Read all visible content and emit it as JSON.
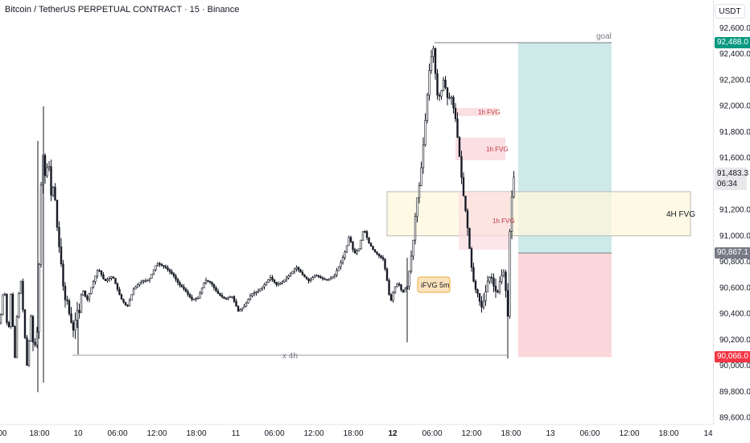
{
  "header": {
    "title": "Bitcoin / TetherUS PERPETUAL CONTRACT · 15 · Binance",
    "unit": "USDT"
  },
  "price_axis": {
    "ticks": [
      "92,600.0",
      "92,400.0",
      "92,200.0",
      "92,000.0",
      "91,800.0",
      "91,600.0",
      "91,200.0",
      "91,000.0",
      "90,800.0",
      "90,600.0",
      "90,400.0",
      "90,200.0",
      "90,000.0",
      "89,800.0",
      "89,600.0"
    ],
    "badges": {
      "target": "92,488.0",
      "current_price": "91,483.3",
      "countdown": "06:34",
      "entry": "90,867.1",
      "stop": "90,066.0"
    }
  },
  "time_axis": {
    "ticks": [
      "00",
      "18:00",
      "10",
      "06:00",
      "12:00",
      "18:00",
      "11",
      "06:00",
      "12:00",
      "18:00",
      "12",
      "06:00",
      "12:00",
      "18:00",
      "13",
      "06:00",
      "12:00",
      "18:00",
      "14"
    ]
  },
  "annotations": {
    "goal": "goal",
    "fvg_4h": "4H FVG",
    "fvg_1h_a": "1h FVG",
    "fvg_1h_b": "1h FVG",
    "fvg_1h_c": "1h FVG",
    "ifvg": "iFVG 5m",
    "x4h": "x 4h"
  },
  "colors": {
    "profit_zone": "#b2dfdb",
    "loss_zone": "#f8c9ce",
    "fvg_4h": "#fdf7dc",
    "fvg_1h": "#fbdcdf",
    "ifvg": "#fde3bd",
    "badge_target": "#089981",
    "badge_stop": "#f23645",
    "badge_entry": "#787b86"
  },
  "chart_data": {
    "type": "candlestick",
    "symbol": "Bitcoin / TetherUS PERPETUAL CONTRACT",
    "interval": "15",
    "ylim": [
      89600,
      92700
    ],
    "key_levels": {
      "target": 92488.0,
      "entry": 90867.1,
      "stop": 90066.0,
      "current": 91483.3
    },
    "fvg_4h": {
      "low": 91000,
      "high": 91340
    },
    "path": [
      [
        0,
        90330
      ],
      [
        5,
        90640
      ],
      [
        10,
        90200
      ],
      [
        14,
        90600
      ],
      [
        18,
        90000
      ],
      [
        22,
        90500
      ],
      [
        26,
        90650
      ],
      [
        30,
        90300
      ],
      [
        34,
        89960
      ],
      [
        38,
        90420
      ],
      [
        42,
        90100
      ],
      [
        47,
        90300
      ],
      [
        50,
        91260
      ],
      [
        53,
        91650
      ],
      [
        57,
        91400
      ],
      [
        60,
        91650
      ],
      [
        63,
        91300
      ],
      [
        67,
        91400
      ],
      [
        70,
        91150
      ],
      [
        72,
        90980
      ],
      [
        75,
        90850
      ],
      [
        78,
        90650
      ],
      [
        80,
        90500
      ],
      [
        83,
        90520
      ],
      [
        86,
        90400
      ],
      [
        89,
        90320
      ],
      [
        92,
        90250
      ],
      [
        95,
        90450
      ],
      [
        98,
        90380
      ],
      [
        102,
        90600
      ],
      [
        108,
        90500
      ],
      [
        115,
        90630
      ],
      [
        122,
        90750
      ],
      [
        130,
        90650
      ],
      [
        140,
        90690
      ],
      [
        150,
        90520
      ],
      [
        158,
        90450
      ],
      [
        166,
        90590
      ],
      [
        175,
        90650
      ],
      [
        185,
        90660
      ],
      [
        195,
        90790
      ],
      [
        205,
        90760
      ],
      [
        215,
        90700
      ],
      [
        222,
        90630
      ],
      [
        230,
        90580
      ],
      [
        238,
        90510
      ],
      [
        246,
        90520
      ],
      [
        255,
        90660
      ],
      [
        262,
        90640
      ],
      [
        270,
        90560
      ],
      [
        280,
        90510
      ],
      [
        288,
        90540
      ],
      [
        296,
        90420
      ],
      [
        304,
        90460
      ],
      [
        312,
        90550
      ],
      [
        320,
        90570
      ],
      [
        328,
        90620
      ],
      [
        336,
        90680
      ],
      [
        344,
        90620
      ],
      [
        352,
        90650
      ],
      [
        360,
        90700
      ],
      [
        368,
        90760
      ],
      [
        376,
        90700
      ],
      [
        384,
        90650
      ],
      [
        392,
        90700
      ],
      [
        400,
        90670
      ],
      [
        408,
        90660
      ],
      [
        416,
        90700
      ],
      [
        424,
        90800
      ],
      [
        430,
        90900
      ],
      [
        434,
        91000
      ],
      [
        440,
        90860
      ],
      [
        446,
        90900
      ],
      [
        452,
        91060
      ],
      [
        458,
        90950
      ],
      [
        464,
        90890
      ],
      [
        470,
        90850
      ],
      [
        476,
        90820
      ],
      [
        480,
        90700
      ],
      [
        485,
        90480
      ],
      [
        490,
        90600
      ],
      [
        495,
        90640
      ],
      [
        500,
        90560
      ],
      [
        506,
        90610
      ],
      [
        510,
        90800
      ],
      [
        513,
        90930
      ],
      [
        516,
        91150
      ],
      [
        519,
        91320
      ],
      [
        522,
        91420
      ],
      [
        526,
        91700
      ],
      [
        530,
        92000
      ],
      [
        533,
        92250
      ],
      [
        536,
        92380
      ],
      [
        538,
        92480
      ],
      [
        541,
        92250
      ],
      [
        544,
        92050
      ],
      [
        548,
        92100
      ],
      [
        551,
        92200
      ],
      [
        554,
        92130
      ],
      [
        557,
        92030
      ],
      [
        560,
        92100
      ],
      [
        563,
        92000
      ],
      [
        566,
        91900
      ],
      [
        569,
        91730
      ],
      [
        572,
        91550
      ],
      [
        575,
        91350
      ],
      [
        578,
        91220
      ],
      [
        581,
        91060
      ],
      [
        584,
        90870
      ],
      [
        587,
        90700
      ],
      [
        590,
        90600
      ],
      [
        594,
        90550
      ],
      [
        598,
        90440
      ],
      [
        602,
        90520
      ],
      [
        606,
        90650
      ],
      [
        610,
        90700
      ],
      [
        614,
        90600
      ],
      [
        618,
        90550
      ],
      [
        622,
        90680
      ],
      [
        626,
        90720
      ],
      [
        629,
        90550
      ],
      [
        631,
        90380
      ],
      [
        633,
        90980
      ],
      [
        636,
        91300
      ],
      [
        639,
        91483
      ]
    ]
  }
}
